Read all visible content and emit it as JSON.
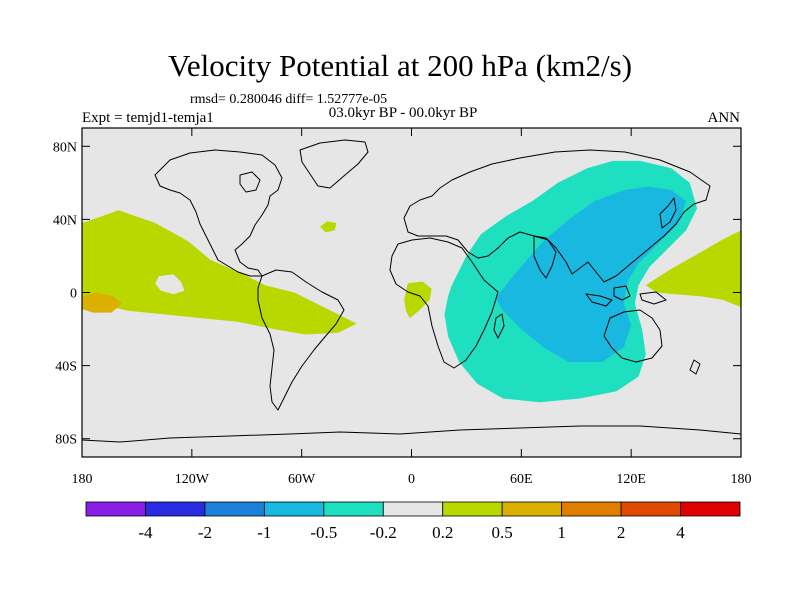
{
  "title": "Velocity Potential at 200 hPa (km2/s)",
  "stats": "rmsd= 0.280046 diff= 1.52777e-05",
  "expt": "Expt = temjd1-temja1",
  "period": "03.0kyr BP - 00.0kyr BP",
  "season": "ANN",
  "chart_data": {
    "type": "heatmap",
    "projection": "cylindrical-equidistant",
    "xlim": [
      -180,
      180
    ],
    "ylim": [
      -90,
      90
    ],
    "x_ticks": [
      {
        "value": -180,
        "label": "180"
      },
      {
        "value": -120,
        "label": "120W"
      },
      {
        "value": -60,
        "label": "60W"
      },
      {
        "value": 0,
        "label": "0"
      },
      {
        "value": 60,
        "label": "60E"
      },
      {
        "value": 120,
        "label": "120E"
      },
      {
        "value": 180,
        "label": "180"
      }
    ],
    "y_ticks": [
      {
        "value": 80,
        "label": "80N"
      },
      {
        "value": 40,
        "label": "40N"
      },
      {
        "value": 0,
        "label": "0"
      },
      {
        "value": -40,
        "label": "40S"
      },
      {
        "value": -80,
        "label": "80S"
      }
    ],
    "colorbar": {
      "colors": [
        "#8a1ee6",
        "#2a2ae0",
        "#1a80d8",
        "#18b8e0",
        "#1ee0c0",
        "#e6e6e6",
        "#b8d800",
        "#dcb000",
        "#e07e00",
        "#e04a00",
        "#e00000"
      ],
      "labels": [
        "-4",
        "-2",
        "-1",
        "-0.5",
        "-0.2",
        "0.2",
        "0.5",
        "1",
        "2",
        "4"
      ]
    },
    "regions": [
      {
        "level": "0.2 to 0.5",
        "color": "#b8d800",
        "desc": "eastern Pacific",
        "points": [
          [
            -174,
            40
          ],
          [
            -160,
            45
          ],
          [
            -140,
            38
          ],
          [
            -122,
            28
          ],
          [
            -110,
            18
          ],
          [
            -92,
            10
          ],
          [
            -80,
            4
          ],
          [
            -64,
            0
          ],
          [
            -52,
            -6
          ],
          [
            -40,
            -12
          ],
          [
            -30,
            -17
          ],
          [
            -40,
            -22
          ],
          [
            -58,
            -23
          ],
          [
            -75,
            -20
          ],
          [
            -95,
            -16
          ],
          [
            -115,
            -14
          ],
          [
            -135,
            -12
          ],
          [
            -155,
            -10
          ],
          [
            -172,
            -6
          ],
          [
            -180,
            -3
          ],
          [
            -180,
            38
          ]
        ]
      },
      {
        "level": "0.5 to 1",
        "color": "#dcb000",
        "desc": "central Pacific maximum",
        "points": [
          [
            -180,
            -2
          ],
          [
            -172,
            0
          ],
          [
            -163,
            -2
          ],
          [
            -158,
            -6
          ],
          [
            -164,
            -11
          ],
          [
            -174,
            -11
          ],
          [
            -180,
            -9
          ]
        ]
      },
      {
        "level": "-0.2 to 0.2",
        "color": "#e6e6e6",
        "desc": "neutral hole in Pacific",
        "points": [
          [
            -138,
            9
          ],
          [
            -130,
            10
          ],
          [
            -126,
            6
          ],
          [
            -124,
            1
          ],
          [
            -130,
            -1
          ],
          [
            -137,
            1
          ],
          [
            -140,
            5
          ]
        ]
      },
      {
        "level": "0.2 to 0.5",
        "color": "#b8d800",
        "desc": "north Atlantic",
        "points": [
          [
            -50,
            36
          ],
          [
            -46,
            39
          ],
          [
            -41,
            38
          ],
          [
            -42,
            34
          ],
          [
            -47,
            33
          ]
        ]
      },
      {
        "level": "0.2 to 0.5",
        "color": "#b8d800",
        "desc": "tropical Atlantic",
        "points": [
          [
            -2,
            5
          ],
          [
            6,
            6
          ],
          [
            11,
            2
          ],
          [
            10,
            -4
          ],
          [
            4,
            -10
          ],
          [
            -1,
            -14
          ],
          [
            -3,
            -10
          ],
          [
            -4,
            -4
          ]
        ]
      },
      {
        "level": "0.2 to 0.5",
        "color": "#b8d800",
        "desc": "western Pacific",
        "points": [
          [
            128,
            4
          ],
          [
            142,
            13
          ],
          [
            158,
            22
          ],
          [
            170,
            29
          ],
          [
            180,
            34
          ],
          [
            180,
            -8
          ],
          [
            170,
            -4
          ],
          [
            158,
            -2
          ],
          [
            144,
            -1
          ],
          [
            134,
            0
          ]
        ]
      },
      {
        "level": "-0.5 to -0.2",
        "color": "#1ee0c0",
        "desc": "Indian Ocean / Asia",
        "points": [
          [
            22,
            4
          ],
          [
            30,
            20
          ],
          [
            38,
            32
          ],
          [
            52,
            42
          ],
          [
            66,
            50
          ],
          [
            80,
            60
          ],
          [
            96,
            68
          ],
          [
            110,
            72
          ],
          [
            125,
            72
          ],
          [
            142,
            68
          ],
          [
            152,
            60
          ],
          [
            156,
            46
          ],
          [
            150,
            34
          ],
          [
            140,
            24
          ],
          [
            130,
            14
          ],
          [
            124,
            4
          ],
          [
            122,
            -6
          ],
          [
            126,
            -20
          ],
          [
            128,
            -34
          ],
          [
            124,
            -46
          ],
          [
            112,
            -54
          ],
          [
            92,
            -58
          ],
          [
            70,
            -60
          ],
          [
            50,
            -58
          ],
          [
            36,
            -50
          ],
          [
            26,
            -38
          ],
          [
            20,
            -24
          ],
          [
            18,
            -12
          ],
          [
            20,
            -2
          ]
        ]
      },
      {
        "level": "-1 to -0.5",
        "color": "#18b8e0",
        "desc": "Indian Ocean / Asia minimum",
        "points": [
          [
            46,
            -3
          ],
          [
            58,
            12
          ],
          [
            72,
            28
          ],
          [
            86,
            40
          ],
          [
            100,
            50
          ],
          [
            116,
            56
          ],
          [
            130,
            58
          ],
          [
            142,
            56
          ],
          [
            150,
            50
          ],
          [
            146,
            38
          ],
          [
            134,
            26
          ],
          [
            124,
            16
          ],
          [
            118,
            6
          ],
          [
            116,
            -6
          ],
          [
            120,
            -18
          ],
          [
            116,
            -30
          ],
          [
            104,
            -38
          ],
          [
            86,
            -38
          ],
          [
            72,
            -30
          ],
          [
            60,
            -20
          ],
          [
            50,
            -10
          ]
        ]
      }
    ]
  }
}
